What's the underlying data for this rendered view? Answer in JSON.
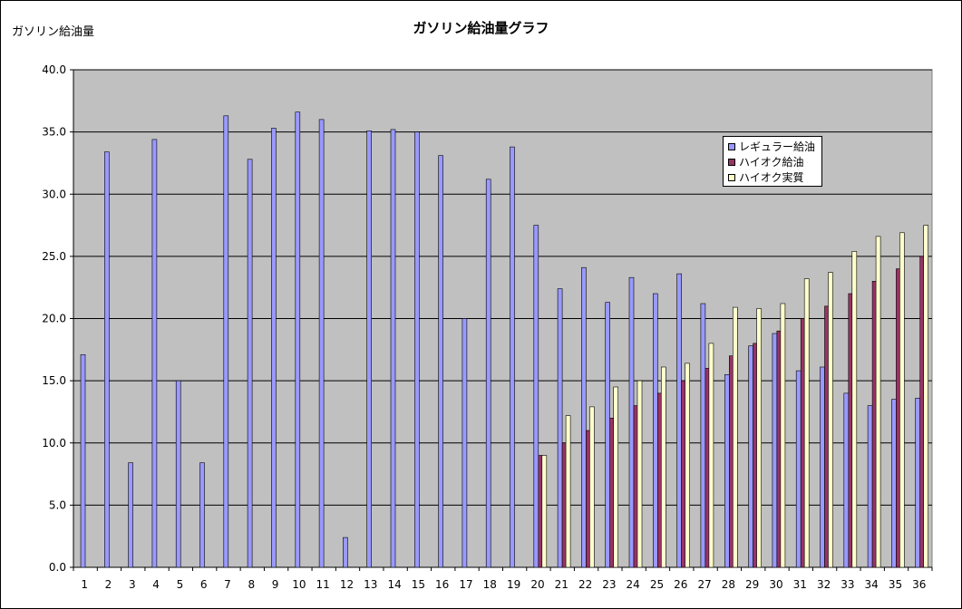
{
  "chart_data": {
    "type": "bar",
    "title": "ガソリン給油量グラフ",
    "ylabel": "ガソリン給油量",
    "xlabel": "",
    "ylim": [
      0,
      40
    ],
    "yticks": [
      "0.0",
      "5.0",
      "10.0",
      "15.0",
      "20.0",
      "25.0",
      "30.0",
      "35.0",
      "40.0"
    ],
    "grid": true,
    "legend_position": "top-right",
    "background_color": "#c0c0c0",
    "categories": [
      "1",
      "2",
      "3",
      "4",
      "5",
      "6",
      "7",
      "8",
      "9",
      "10",
      "11",
      "12",
      "13",
      "14",
      "15",
      "16",
      "17",
      "18",
      "19",
      "20",
      "21",
      "22",
      "23",
      "24",
      "25",
      "26",
      "27",
      "28",
      "29",
      "30",
      "31",
      "32",
      "33",
      "34",
      "35",
      "36"
    ],
    "series": [
      {
        "name": "レギュラー給油",
        "color": "#9999ff",
        "values": [
          17.1,
          33.4,
          8.4,
          34.4,
          15.0,
          8.4,
          36.3,
          32.8,
          35.3,
          36.6,
          36.0,
          2.4,
          35.1,
          35.2,
          35.0,
          33.1,
          20.0,
          31.2,
          33.8,
          27.5,
          22.4,
          24.1,
          21.3,
          23.3,
          22.0,
          23.6,
          21.2,
          15.5,
          17.8,
          18.8,
          15.8,
          16.1,
          14.0,
          13.0,
          13.5,
          13.6
        ]
      },
      {
        "name": "ハイオク給油",
        "color": "#993366",
        "values": [
          null,
          null,
          null,
          null,
          null,
          null,
          null,
          null,
          null,
          null,
          null,
          null,
          null,
          null,
          null,
          null,
          null,
          null,
          null,
          9.0,
          10.0,
          11.0,
          12.0,
          13.0,
          14.0,
          15.0,
          16.0,
          17.0,
          18.0,
          19.0,
          20.0,
          21.0,
          22.0,
          23.0,
          24.0,
          25.0
        ]
      },
      {
        "name": "ハイオク実質",
        "color": "#ffffcc",
        "values": [
          null,
          null,
          null,
          null,
          null,
          null,
          null,
          null,
          null,
          null,
          null,
          null,
          null,
          null,
          null,
          null,
          null,
          null,
          null,
          9.0,
          12.2,
          12.9,
          14.5,
          15.0,
          16.1,
          16.4,
          18.0,
          20.9,
          20.8,
          21.2,
          23.2,
          23.7,
          25.4,
          26.6,
          26.9,
          27.5
        ]
      }
    ]
  }
}
